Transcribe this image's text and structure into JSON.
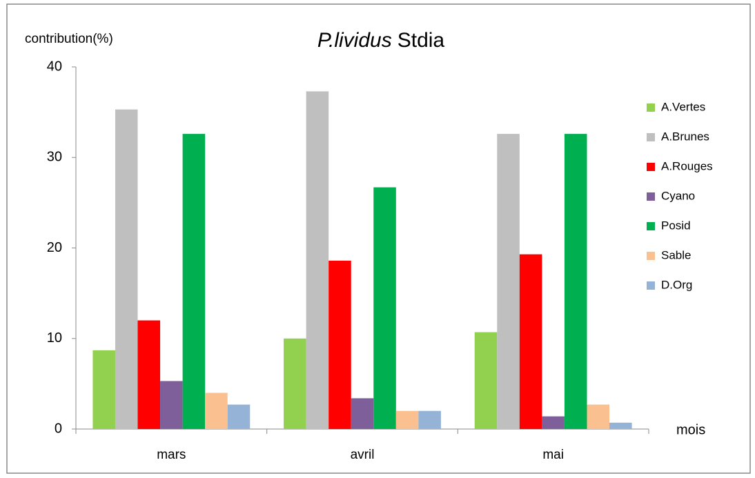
{
  "chart_data": {
    "type": "bar",
    "title": [
      "P.lividus",
      "Stdia"
    ],
    "y_label": "contribution(%)",
    "x_label": "mois",
    "categories": [
      "mars",
      "avril",
      "mai"
    ],
    "series": [
      {
        "name": "A.Vertes",
        "color": "#92d050",
        "values": [
          8.7,
          10,
          10.7
        ]
      },
      {
        "name": "A.Brunes",
        "color": "#bfbfbf",
        "values": [
          35.3,
          37.3,
          32.6
        ]
      },
      {
        "name": "A.Rouges",
        "color": "#ff0000",
        "values": [
          12,
          18.6,
          19.3
        ]
      },
      {
        "name": "Cyano",
        "color": "#7f5f9a",
        "values": [
          5.3,
          3.4,
          1.4
        ]
      },
      {
        "name": "Posid",
        "color": "#00b050",
        "values": [
          32.6,
          26.7,
          32.6
        ]
      },
      {
        "name": "Sable",
        "color": "#fac090",
        "values": [
          4,
          2,
          2.7
        ]
      },
      {
        "name": "D.Org",
        "color": "#95b3d7",
        "values": [
          2.7,
          2,
          0.7
        ]
      }
    ],
    "ylim": [
      0,
      40
    ],
    "yticks": [
      0,
      10,
      20,
      30,
      40
    ],
    "legend": "right"
  }
}
